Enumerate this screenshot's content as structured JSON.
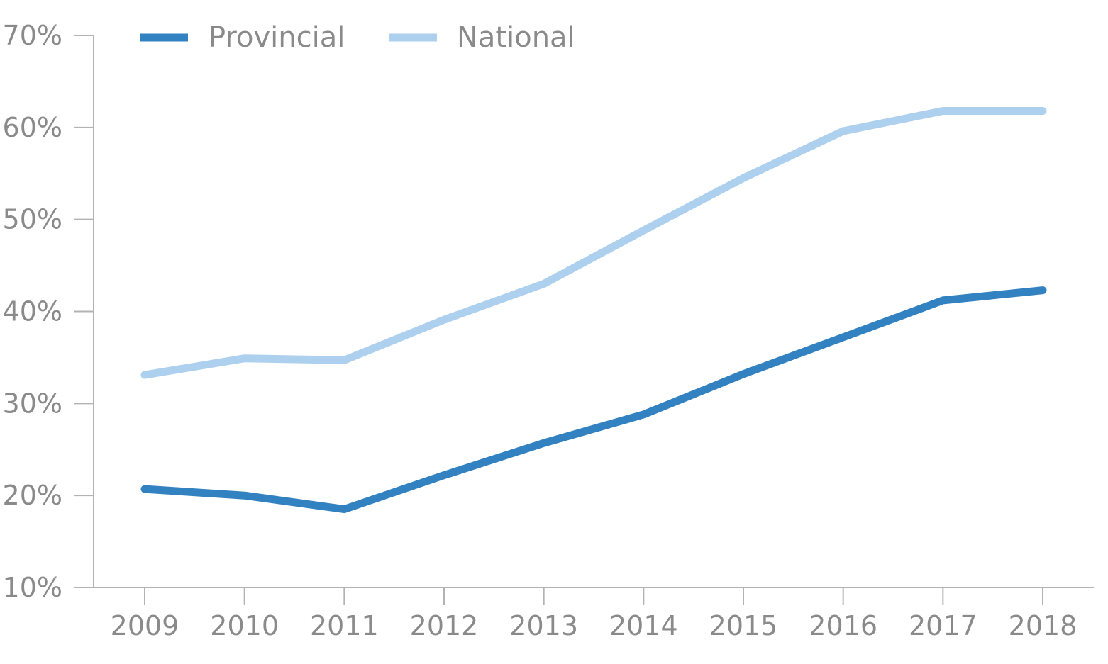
{
  "chart_data": {
    "type": "line",
    "title": "",
    "xlabel": "",
    "ylabel": "",
    "x": [
      "2009",
      "2010",
      "2011",
      "2012",
      "2013",
      "2014",
      "2015",
      "2016",
      "2017",
      "2018"
    ],
    "ylim": [
      10,
      70
    ],
    "yticks": [
      10,
      20,
      30,
      40,
      50,
      60,
      70
    ],
    "ytick_labels": [
      "10%",
      "20%",
      "30%",
      "40%",
      "50%",
      "60%",
      "70%"
    ],
    "grid": false,
    "legend_position": "top-left",
    "series": [
      {
        "name": "Provincial",
        "color": "#3281c0",
        "values": [
          20.7,
          20.0,
          18.5,
          22.2,
          25.7,
          28.8,
          33.2,
          37.2,
          41.2,
          42.3
        ]
      },
      {
        "name": "National",
        "color": "#aed0ef",
        "values": [
          33.1,
          34.9,
          34.7,
          39.1,
          43.0,
          48.8,
          54.5,
          59.6,
          61.8,
          61.8
        ]
      }
    ],
    "axis_color": "#b3b3b3"
  }
}
